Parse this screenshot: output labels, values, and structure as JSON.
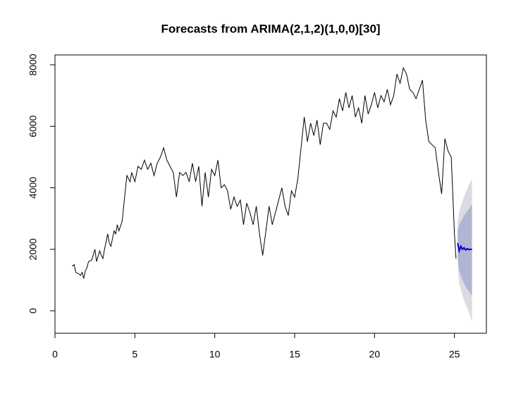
{
  "chart_data": {
    "type": "line",
    "title": "Forecasts from ARIMA(2,1,2)(1,0,0)[30]",
    "xlim": [
      0,
      27
    ],
    "ylim": [
      -730,
      8320
    ],
    "xticks": [
      0,
      5,
      10,
      15,
      20,
      25
    ],
    "yticks": [
      0,
      2000,
      4000,
      6000,
      8000
    ],
    "series": [
      {
        "color": "#000000",
        "x": [
          1.07,
          1.2,
          1.3,
          1.5,
          1.6,
          1.7,
          1.8,
          1.9,
          2.0,
          2.1,
          2.3,
          2.5,
          2.6,
          2.8,
          2.9,
          3.0,
          3.1,
          3.3,
          3.4,
          3.5,
          3.7,
          3.8,
          3.9,
          4.0,
          4.2,
          4.3,
          4.5,
          4.6,
          4.7,
          4.8,
          5.0,
          5.2,
          5.4,
          5.6,
          5.8,
          6.0,
          6.2,
          6.4,
          6.6,
          6.8,
          7.0,
          7.2,
          7.4,
          7.6,
          7.8,
          8.0,
          8.2,
          8.4,
          8.6,
          8.8,
          9.0,
          9.2,
          9.4,
          9.6,
          9.8,
          10.0,
          10.2,
          10.4,
          10.6,
          10.8,
          11.0,
          11.2,
          11.4,
          11.6,
          11.8,
          12.0,
          12.2,
          12.4,
          12.6,
          12.8,
          13.0,
          13.2,
          13.4,
          13.6,
          13.8,
          14.0,
          14.2,
          14.4,
          14.6,
          14.8,
          15.0,
          15.2,
          15.4,
          15.6,
          15.8,
          16.0,
          16.2,
          16.4,
          16.6,
          16.8,
          17.0,
          17.2,
          17.4,
          17.6,
          17.8,
          18.0,
          18.2,
          18.4,
          18.6,
          18.8,
          19.0,
          19.2,
          19.4,
          19.6,
          19.8,
          20.0,
          20.2,
          20.4,
          20.6,
          20.8,
          21.0,
          21.2,
          21.4,
          21.6,
          21.8,
          22.0,
          22.2,
          22.4,
          22.6,
          22.8,
          23.0,
          23.2,
          23.4,
          23.6,
          23.8,
          24.0,
          24.2,
          24.4,
          24.6,
          24.8,
          25.0,
          25.1
        ],
        "values": [
          1450,
          1500,
          1250,
          1200,
          1150,
          1250,
          1050,
          1300,
          1400,
          1600,
          1650,
          2000,
          1600,
          1950,
          1800,
          1700,
          2000,
          2500,
          2200,
          2100,
          2600,
          2500,
          2800,
          2600,
          2900,
          3400,
          4400,
          4300,
          4200,
          4500,
          4200,
          4700,
          4600,
          4900,
          4600,
          4800,
          4400,
          4800,
          5000,
          5300,
          4900,
          4700,
          4500,
          3700,
          4500,
          4400,
          4500,
          4200,
          4800,
          4200,
          4700,
          3400,
          4500,
          3700,
          4600,
          4400,
          4900,
          4000,
          4100,
          3900,
          3300,
          3700,
          3400,
          3600,
          2800,
          3500,
          3200,
          2800,
          3400,
          2500,
          1800,
          2600,
          3400,
          2800,
          3200,
          3600,
          4000,
          3400,
          3100,
          3900,
          3700,
          4300,
          5300,
          6300,
          5500,
          6100,
          5700,
          6200,
          5400,
          6100,
          6100,
          5900,
          6500,
          6300,
          6900,
          6500,
          7100,
          6600,
          7000,
          6300,
          6600,
          6100,
          7000,
          6400,
          6700,
          7100,
          6600,
          7000,
          6800,
          7200,
          6700,
          7000,
          7700,
          7400,
          7900,
          7700,
          7200,
          7100,
          6900,
          7200,
          7500,
          6200,
          5500,
          5400,
          5300,
          4500,
          3800,
          5600,
          5200,
          5000,
          2500,
          1700
        ]
      },
      {
        "color": "#0000cc",
        "x": [
          25.2,
          25.3,
          25.4,
          25.5,
          25.6,
          25.7,
          25.8,
          25.9,
          26.0,
          26.1
        ],
        "values": [
          2200,
          1950,
          2100,
          2000,
          2050,
          1980,
          2020,
          1990,
          2000,
          2000
        ]
      }
    ],
    "bands": [
      {
        "color": "#dbdbe3",
        "x": [
          25.2,
          25.3,
          25.4,
          25.5,
          25.6,
          25.7,
          25.8,
          25.9,
          26.0,
          26.1
        ],
        "lower": [
          1500,
          900,
          700,
          500,
          350,
          200,
          100,
          -50,
          -200,
          -350
        ],
        "upper": [
          2900,
          3200,
          3400,
          3550,
          3700,
          3850,
          3950,
          4100,
          4200,
          4300
        ]
      },
      {
        "color": "#b1b5d3",
        "x": [
          25.2,
          25.3,
          25.4,
          25.5,
          25.6,
          25.7,
          25.8,
          25.9,
          26.0,
          26.1
        ],
        "lower": [
          1800,
          1300,
          1150,
          1000,
          900,
          800,
          700,
          650,
          550,
          500
        ],
        "upper": [
          2600,
          2800,
          2900,
          3000,
          3100,
          3150,
          3250,
          3300,
          3400,
          3450
        ]
      }
    ]
  }
}
